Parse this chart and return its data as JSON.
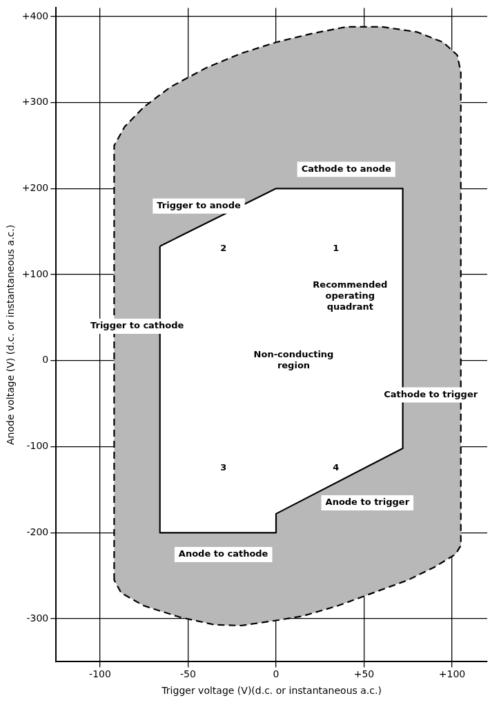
{
  "chart_data": {
    "type": "line",
    "xlabel": "Trigger voltage (V)(d.c. or instantaneous a.c.)",
    "ylabel": "Anode voltage (V) (d.c. or instantaneous a.c.)",
    "series": [
      {
        "type": "area",
        "color": "#b8b8b8",
        "line_style": "dashed",
        "x": [
          -92,
          -92,
          -86,
          -75,
          -60,
          -40,
          -20,
          0,
          20,
          40,
          60,
          80,
          95,
          103,
          105,
          105,
          102,
          90,
          75,
          55,
          35,
          15,
          0,
          -20,
          -35,
          -55,
          -75,
          -88,
          -92
        ],
        "values": [
          -255,
          250,
          272,
          295,
          318,
          340,
          357,
          370,
          380,
          388,
          388,
          382,
          370,
          355,
          335,
          -215,
          -225,
          -240,
          -255,
          -270,
          -285,
          -297,
          -302,
          -308,
          -307,
          -298,
          -285,
          -270,
          -255
        ]
      },
      {
        "type": "area",
        "color": "#ffffff",
        "line_style": "solid",
        "x": [
          -66,
          0,
          72,
          72,
          0,
          0,
          -66,
          -66
        ],
        "values": [
          133,
          200,
          200,
          -102,
          -178,
          -200,
          -200,
          133
        ]
      }
    ],
    "xlim": [
      -125,
      120
    ],
    "ylim": [
      -350,
      410
    ],
    "xticks": [
      -100,
      -50,
      0,
      {
        "value": 50,
        "label": "+50"
      },
      {
        "value": 100,
        "label": "+100"
      }
    ],
    "yticks": [
      -300,
      -200,
      -100,
      0,
      {
        "value": 100,
        "label": "+100"
      },
      {
        "value": 200,
        "label": "+200"
      },
      {
        "value": 300,
        "label": "+300"
      },
      {
        "value": 400,
        "label": "+400"
      }
    ],
    "grid": true,
    "legend": false,
    "marker": "none",
    "annotations": [
      "Cathode to anode",
      "Trigger to anode",
      "2",
      "1",
      "Recommended operating quadrant",
      "Non-conducting region",
      "Trigger to cathode",
      "Cathode to trigger",
      "3",
      "4",
      "Anode to cathode",
      "Anode to trigger"
    ]
  }
}
